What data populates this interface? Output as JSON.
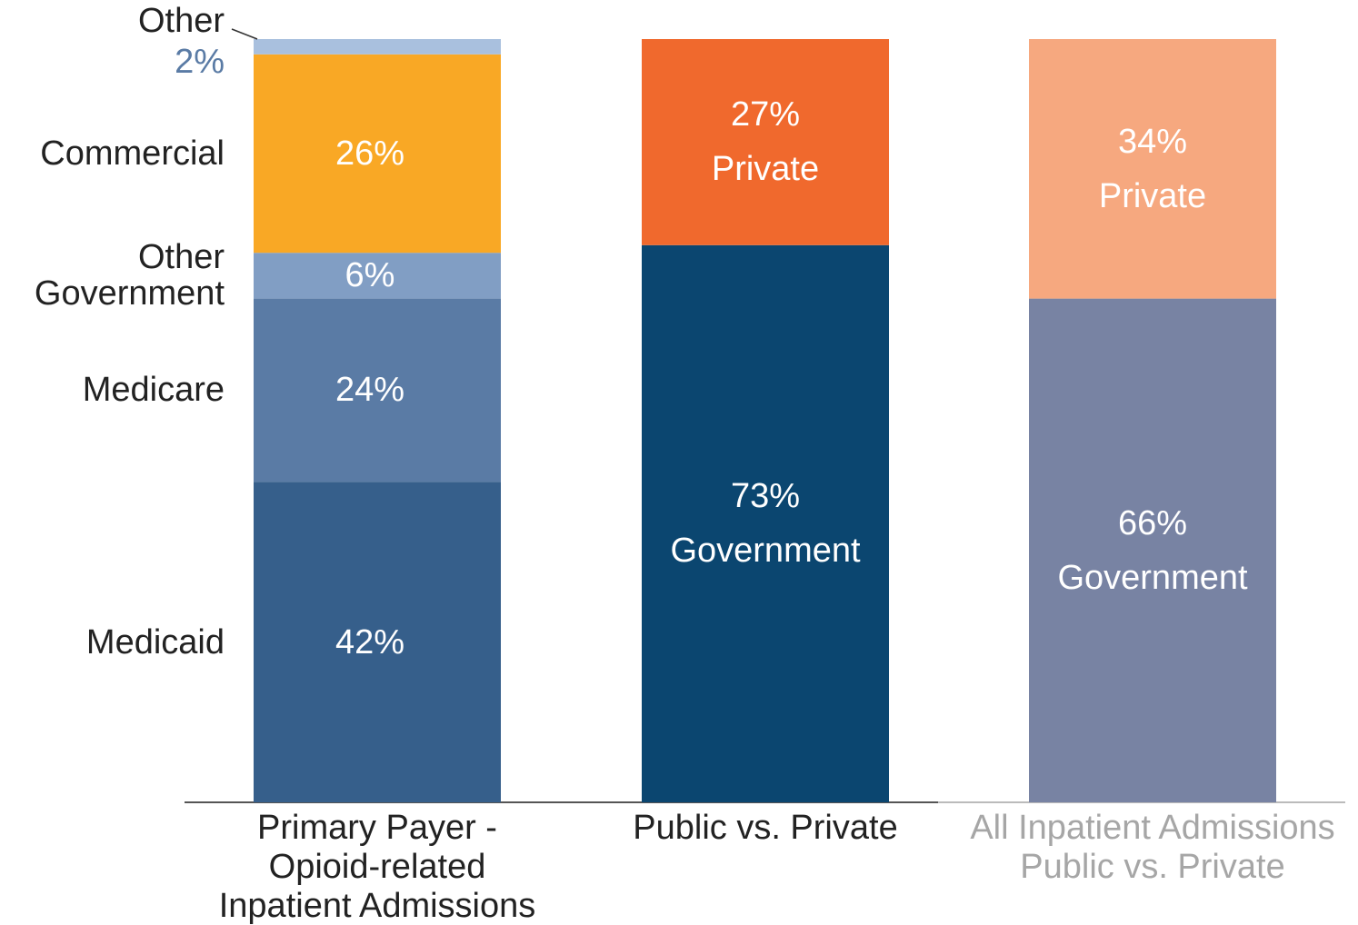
{
  "chart_data": {
    "type": "stacked_bar",
    "categories": [
      "Primary Payer -\nOpioid-related\nInpatient Admissions",
      "Public vs. Private",
      "All Inpatient Admissions\nPublic vs. Private"
    ],
    "category_colors": [
      "#222222",
      "#222222",
      "#a6a6a6"
    ],
    "ylim": [
      0,
      100
    ],
    "series": [
      {
        "name": "Medicaid",
        "color": "#365f8b",
        "values": [
          42,
          null,
          null
        ],
        "value_labels": [
          "42%",
          null,
          null
        ]
      },
      {
        "name": "Medicare",
        "color": "#5a7ba5",
        "values": [
          24,
          null,
          null
        ],
        "value_labels": [
          "24%",
          null,
          null
        ]
      },
      {
        "name": "Other\nGovernment",
        "color": "#819ec4",
        "values": [
          6,
          null,
          null
        ],
        "value_labels": [
          "6%",
          null,
          null
        ]
      },
      {
        "name": "Commercial",
        "color": "#f9a825",
        "values": [
          26,
          null,
          null
        ],
        "value_labels": [
          "26%",
          null,
          null
        ]
      },
      {
        "name": "Other",
        "color": "#a9c0de",
        "values": [
          2,
          null,
          null
        ],
        "value_labels": [
          "2%",
          null,
          null
        ]
      },
      {
        "name": "Government",
        "colors": [
          null,
          "#0b4670",
          "#7883a3"
        ],
        "values": [
          null,
          73,
          66
        ],
        "value_labels": [
          null,
          "73%",
          "66%"
        ]
      },
      {
        "name": "Private",
        "colors": [
          null,
          "#f0692d",
          "#f6a87f"
        ],
        "values": [
          null,
          27,
          34
        ],
        "value_labels": [
          null,
          "27%",
          "34%"
        ]
      }
    ]
  }
}
